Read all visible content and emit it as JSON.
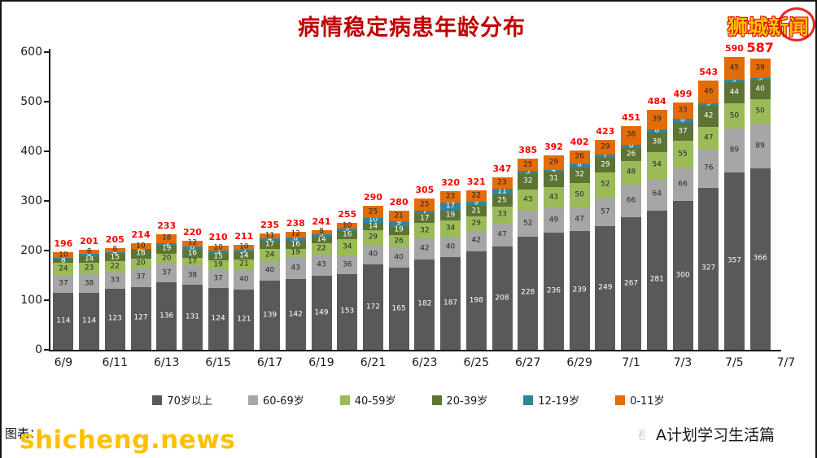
{
  "title": "病情稳定病患年龄分布",
  "watermarks": {
    "top": "狮城新闻",
    "bottom": "shicheng.news"
  },
  "footer": {
    "credit": "图表：",
    "hand_icon": "✌",
    "channel": "A计划学习生活篇"
  },
  "chart_data": {
    "type": "bar",
    "stacked": true,
    "title": "病情稳定病患年龄分布",
    "grid": false,
    "legend_position": "bottom",
    "ylim": [
      0,
      600
    ],
    "y_ticks": [
      0,
      100,
      200,
      300,
      400,
      500,
      600
    ],
    "categories": [
      "6/9",
      "6/10",
      "6/11",
      "6/12",
      "6/13",
      "6/14",
      "6/15",
      "6/16",
      "6/17",
      "6/18",
      "6/19",
      "6/20",
      "6/21",
      "6/22",
      "6/23",
      "6/24",
      "6/25",
      "6/26",
      "6/27",
      "6/28",
      "6/29",
      "6/30",
      "7/1",
      "7/2",
      "7/3",
      "7/4",
      "7/5",
      "7/6"
    ],
    "x_tick_labels": [
      "6/9",
      "6/11",
      "6/13",
      "6/15",
      "6/17",
      "6/19",
      "6/21",
      "6/23",
      "6/25",
      "6/27",
      "6/29",
      "7/1",
      "7/3",
      "7/5",
      "7/7"
    ],
    "series": [
      {
        "key": "age-70-plus",
        "name": "70岁以上",
        "color": "#595959",
        "label_color": "#ffffff",
        "values": [
          114,
          114,
          123,
          127,
          136,
          131,
          124,
          121,
          139,
          142,
          149,
          153,
          172,
          165,
          182,
          187,
          198,
          208,
          228,
          236,
          239,
          249,
          267,
          281,
          300,
          327,
          357,
          366
        ]
      },
      {
        "key": "age-60-69",
        "name": "60-69岁",
        "color": "#a6a6a6",
        "label_color": "#262626",
        "values": [
          37,
          38,
          33,
          37,
          37,
          38,
          37,
          40,
          40,
          43,
          43,
          36,
          40,
          40,
          42,
          40,
          42,
          47,
          52,
          49,
          47,
          57,
          66,
          64,
          66,
          76,
          89,
          89
        ]
      },
      {
        "key": "age-40-59",
        "name": "40-59岁",
        "color": "#9bbb59",
        "label_color": "#262626",
        "values": [
          24,
          23,
          22,
          20,
          20,
          17,
          19,
          21,
          24,
          19,
          22,
          34,
          29,
          26,
          32,
          34,
          29,
          33,
          43,
          43,
          50,
          52,
          48,
          54,
          55,
          47,
          50,
          50
        ]
      },
      {
        "key": "age-20-39",
        "name": "20-39岁",
        "color": "#5e7434",
        "label_color": "#ffffff",
        "values": [
          8,
          14,
          15,
          18,
          19,
          16,
          15,
          14,
          17,
          16,
          14,
          16,
          14,
          19,
          17,
          19,
          21,
          25,
          32,
          31,
          32,
          29,
          26,
          38,
          37,
          42,
          44,
          40
        ]
      },
      {
        "key": "age-12-19",
        "name": "12-19岁",
        "color": "#31859b",
        "label_color": "#ffffff",
        "values": [
          3,
          4,
          4,
          2,
          3,
          6,
          5,
          5,
          4,
          6,
          5,
          6,
          10,
          9,
          7,
          17,
          9,
          11,
          5,
          4,
          8,
          7,
          6,
          8,
          8,
          5,
          5,
          3
        ]
      },
      {
        "key": "age-0-11",
        "name": "0-11岁",
        "color": "#e36c09",
        "label_color": "#262626",
        "values": [
          10,
          8,
          8,
          10,
          18,
          12,
          10,
          10,
          11,
          12,
          8,
          10,
          25,
          21,
          25,
          23,
          22,
          23,
          25,
          29,
          26,
          29,
          38,
          39,
          33,
          46,
          45,
          39
        ]
      }
    ],
    "totals": [
      196,
      201,
      205,
      214,
      233,
      220,
      210,
      211,
      235,
      238,
      241,
      255,
      290,
      280,
      305,
      320,
      321,
      347,
      385,
      392,
      402,
      423,
      451,
      484,
      499,
      543,
      590,
      587
    ],
    "total_label_color": "#ff0000"
  }
}
